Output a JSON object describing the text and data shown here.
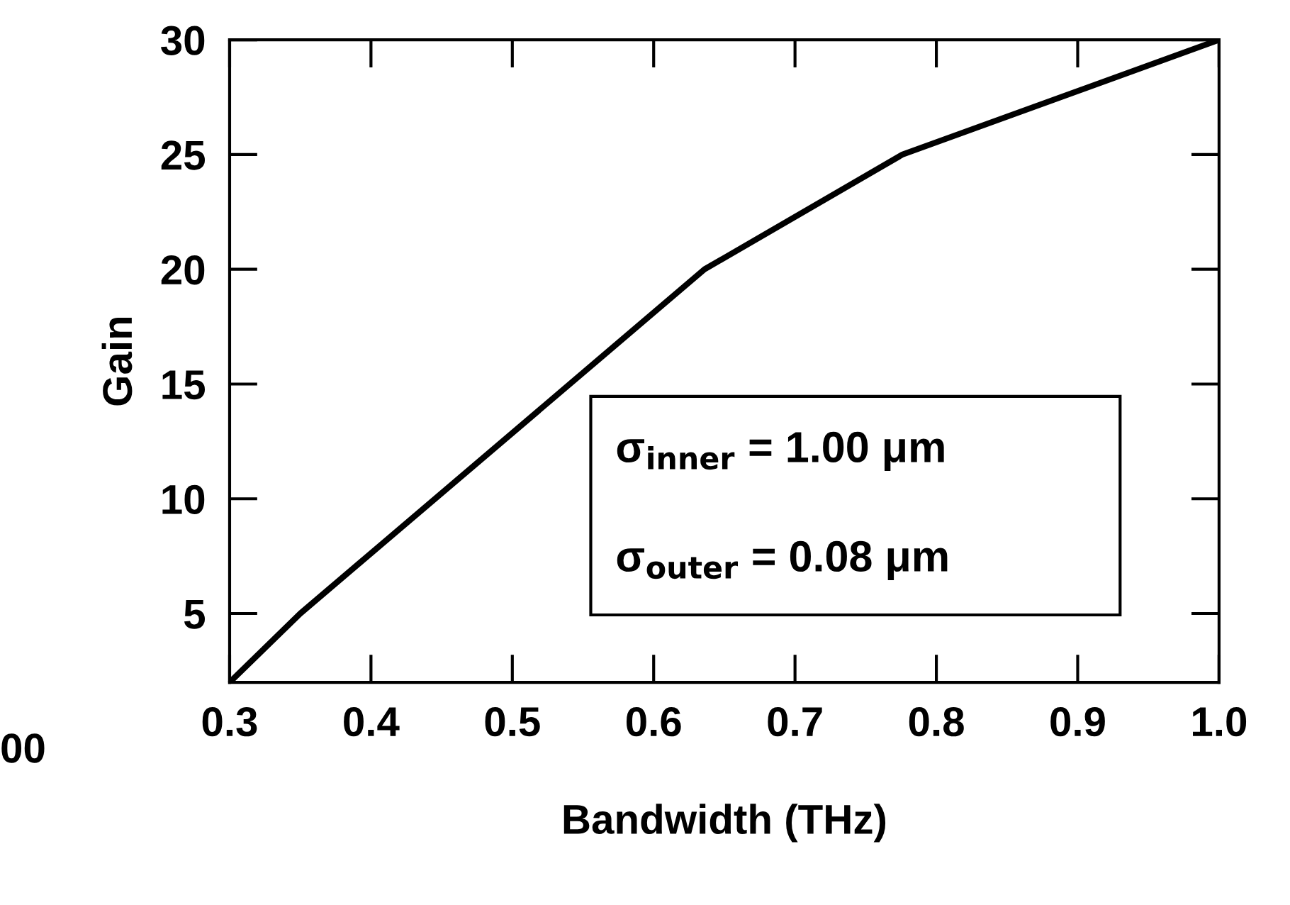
{
  "chart_data": {
    "type": "line",
    "xlabel": "Bandwidth (THz)",
    "ylabel": "Gain",
    "x": [
      0.3,
      0.35,
      0.636,
      0.776,
      1.0
    ],
    "series": [
      {
        "color": "#000000",
        "values": [
          2,
          5,
          20,
          25,
          30
        ]
      }
    ],
    "xlim": [
      0.3,
      1.0
    ],
    "ylim": [
      2,
      30
    ],
    "xticks": [
      0.3,
      0.4,
      0.5,
      0.6,
      0.7,
      0.8,
      0.9,
      {
        "value": 1.0,
        "label": "1.0"
      }
    ],
    "yticks": [
      5,
      10,
      15,
      20,
      25,
      30
    ],
    "grid": false,
    "legend": false,
    "marker": "none",
    "line_style": "solid",
    "annotations": [
      "σ$_{inner}$ = 1.00 μm",
      "σ$_{outer}$ = 0.08 μm",
      "00"
    ]
  }
}
